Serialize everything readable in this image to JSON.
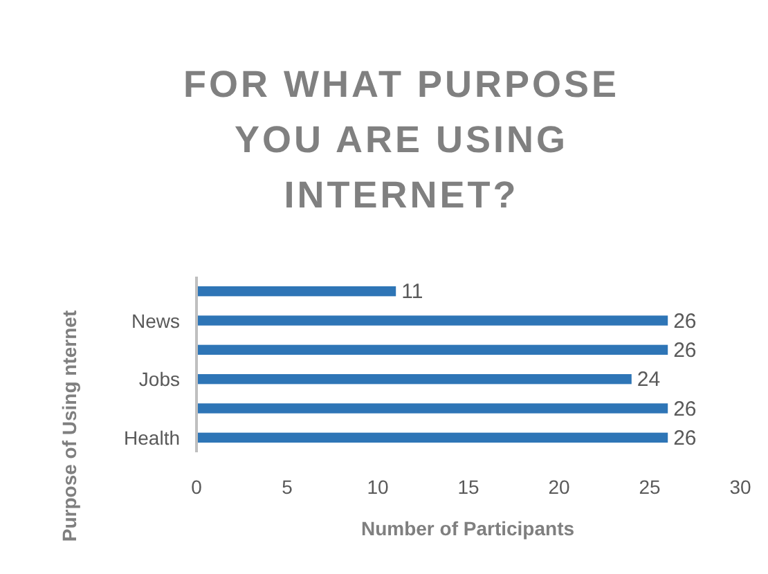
{
  "chart_data": {
    "type": "bar",
    "orientation": "horizontal",
    "title": "FOR WHAT PURPOSE YOU ARE USING INTERNET?",
    "xlabel": "Number of Participants",
    "ylabel": "Purpose of Using nternet",
    "categories": [
      null,
      "News",
      null,
      "Jobs",
      null,
      "Health"
    ],
    "values": [
      11,
      26,
      26,
      24,
      26,
      26
    ],
    "color": "#2e75b6",
    "data_labels": true,
    "xlim": [
      0,
      30
    ],
    "xticks": [
      0,
      5,
      10,
      15,
      20,
      25,
      30
    ],
    "grid": false
  }
}
